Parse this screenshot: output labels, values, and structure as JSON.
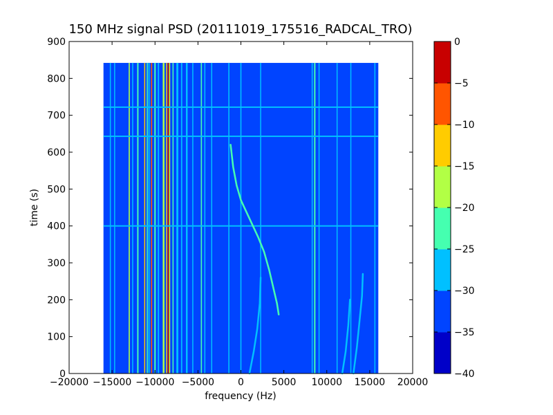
{
  "chart_data": {
    "type": "heatmap",
    "title": "150 MHz signal PSD (20111019_175516_RADCAL_TRO)",
    "xlabel": "frequency (Hz)",
    "ylabel": "time (s)",
    "xlim": [
      -20000,
      20000
    ],
    "ylim": [
      0,
      900
    ],
    "xticks": [
      -20000,
      -15000,
      -10000,
      -5000,
      0,
      5000,
      10000,
      15000,
      20000
    ],
    "xtick_labels": [
      "−20000",
      "−15000",
      "−10000",
      "−5000",
      "0",
      "5000",
      "10000",
      "15000",
      "20000"
    ],
    "yticks": [
      0,
      100,
      200,
      300,
      400,
      500,
      600,
      700,
      800,
      900
    ],
    "ytick_labels": [
      "0",
      "100",
      "200",
      "300",
      "400",
      "500",
      "600",
      "700",
      "800",
      "900"
    ],
    "data_extent": {
      "x": [
        -16000,
        16000
      ],
      "y": [
        0,
        842
      ]
    },
    "background_level": -32.5,
    "colorbar": {
      "levels": [
        -40,
        -35,
        -30,
        -25,
        -20,
        -15,
        -10,
        -5,
        0
      ],
      "tick_labels": [
        "−40",
        "−35",
        "−30",
        "−25",
        "−20",
        "−15",
        "−10",
        "−5",
        "0"
      ],
      "colors": [
        "#0000c8",
        "#0044ff",
        "#00c0ff",
        "#45ffb0",
        "#b2ff45",
        "#ffcc00",
        "#ff5500",
        "#c80000"
      ]
    },
    "steady_lines": [
      {
        "freq": -15200,
        "level": -27.5,
        "width": 100
      },
      {
        "freq": -14700,
        "level": -27.5,
        "width": 80
      },
      {
        "freq": -13000,
        "level": -17.5,
        "width": 130
      },
      {
        "freq": -12600,
        "level": -27.5,
        "width": 80
      },
      {
        "freq": -12000,
        "level": -22.5,
        "width": 160
      },
      {
        "freq": -11200,
        "level": -12.5,
        "width": 120
      },
      {
        "freq": -10900,
        "level": -22.5,
        "width": 100
      },
      {
        "freq": -10700,
        "level": -27.5,
        "width": 150
      },
      {
        "freq": -10400,
        "level": -7.5,
        "width": 130
      },
      {
        "freq": -10000,
        "level": -22.5,
        "width": 170
      },
      {
        "freq": -9600,
        "level": -27.5,
        "width": 150
      },
      {
        "freq": -9000,
        "level": -17.5,
        "width": 200
      },
      {
        "freq": -8650,
        "level": -12.5,
        "width": 90
      },
      {
        "freq": -8450,
        "level": -2.5,
        "width": 140
      },
      {
        "freq": -8300,
        "level": -17.5,
        "width": 130
      },
      {
        "freq": -7900,
        "level": -22.5,
        "width": 130
      },
      {
        "freq": -7400,
        "level": -27.5,
        "width": 230
      },
      {
        "freq": -6900,
        "level": -27.5,
        "width": 140
      },
      {
        "freq": -6300,
        "level": -27.5,
        "width": 200
      },
      {
        "freq": -5600,
        "level": -27.5,
        "width": 120
      },
      {
        "freq": -4600,
        "level": -22.5,
        "width": 130
      },
      {
        "freq": -4200,
        "level": -27.5,
        "width": 80
      },
      {
        "freq": -3400,
        "level": -27.5,
        "width": 80
      },
      {
        "freq": -1400,
        "level": -27.5,
        "width": 130
      },
      {
        "freq": 0,
        "level": -27.5,
        "width": 130
      },
      {
        "freq": 2300,
        "level": -27.5,
        "width": 60
      },
      {
        "freq": 8300,
        "level": -27.5,
        "width": 60
      },
      {
        "freq": 8600,
        "level": -22.5,
        "width": 160
      },
      {
        "freq": 9100,
        "level": -27.5,
        "width": 80
      },
      {
        "freq": 11200,
        "level": -27.5,
        "width": 80
      },
      {
        "freq": 12800,
        "level": -27.5,
        "width": 80
      },
      {
        "freq": 15600,
        "level": -27.5,
        "width": 80
      }
    ],
    "time_lines": [
      {
        "time": 643,
        "level": -27.5
      },
      {
        "time": 722,
        "level": -27.5
      },
      {
        "time": 400,
        "level": -27.5
      }
    ],
    "drifting_tracks": [
      {
        "level": -22.5,
        "points": [
          [
            -1200,
            620
          ],
          [
            -900,
            560
          ],
          [
            -500,
            510
          ],
          [
            0,
            470
          ],
          [
            500,
            445
          ],
          [
            1200,
            410
          ],
          [
            2000,
            370
          ],
          [
            2700,
            330
          ],
          [
            3300,
            280
          ],
          [
            3800,
            230
          ],
          [
            4200,
            190
          ],
          [
            4400,
            160
          ]
        ]
      },
      {
        "level": -27.5,
        "points": [
          [
            1000,
            0
          ],
          [
            1500,
            60
          ],
          [
            1900,
            120
          ],
          [
            2200,
            190
          ],
          [
            2300,
            260
          ]
        ]
      },
      {
        "level": -27.5,
        "points": [
          [
            13100,
            0
          ],
          [
            13500,
            70
          ],
          [
            13800,
            140
          ],
          [
            14100,
            210
          ],
          [
            14200,
            270
          ]
        ]
      },
      {
        "level": -27.5,
        "points": [
          [
            11800,
            0
          ],
          [
            12200,
            60
          ],
          [
            12500,
            130
          ],
          [
            12700,
            200
          ]
        ]
      }
    ]
  }
}
